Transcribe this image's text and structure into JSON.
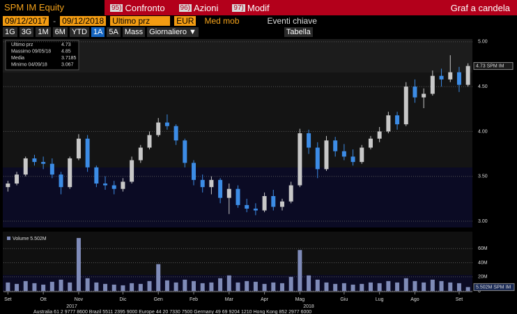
{
  "header": {
    "security": "SPM IM Equity",
    "menu": [
      {
        "key": "95)",
        "label": "Confronto"
      },
      {
        "key": "96)",
        "label": "Azioni"
      },
      {
        "key": "97)",
        "label": "Modif"
      }
    ],
    "chart_kind": "Graf a candela"
  },
  "toolbar": {
    "from": "09/12/2017",
    "to": "09/12/2018",
    "field": "Ultimo prz",
    "currency": "EUR",
    "moving_avg": "Med mob",
    "events": "Eventi chiave",
    "periods": [
      "1G",
      "3G",
      "1M",
      "6M",
      "YTD",
      "1A",
      "5A",
      "Mass"
    ],
    "active_period": "1A",
    "frequency": "Giornaliero ▼",
    "table": "Tabella"
  },
  "chart_data": [
    {
      "type": "candlestick",
      "stats": [
        {
          "label": "Ultimo prz",
          "value": 4.73
        },
        {
          "label": "Massimo 09/05/18",
          "value": 4.85
        },
        {
          "label": "Media",
          "value": 3.7185
        },
        {
          "label": "Minimo 04/09/18",
          "value": 3.067
        }
      ],
      "last_label": "4.73 SPM IM",
      "up_color": "#c8c8c8",
      "down_color": "#3c8ce6",
      "categories": [
        "Set",
        null,
        null,
        null,
        "Ott",
        null,
        null,
        null,
        "Nov",
        null,
        null,
        null,
        null,
        "Dic",
        null,
        null,
        null,
        "Gen",
        null,
        null,
        null,
        "Feb",
        null,
        null,
        null,
        "Mar",
        null,
        null,
        null,
        "Apr",
        null,
        null,
        null,
        "Mag",
        null,
        null,
        null,
        null,
        "Giu",
        null,
        null,
        null,
        "Lug",
        null,
        null,
        null,
        "Ago",
        null,
        null,
        null,
        null,
        "Set",
        null
      ],
      "years": [
        "2017",
        "2018"
      ],
      "open": [
        3.38,
        3.42,
        3.52,
        3.7,
        3.66,
        3.64,
        3.52,
        3.38,
        3.7,
        3.92,
        3.6,
        3.42,
        3.4,
        3.36,
        3.44,
        3.68,
        3.82,
        3.96,
        4.1,
        4.06,
        3.9,
        3.65,
        3.46,
        3.38,
        3.46,
        3.26,
        3.36,
        3.18,
        3.14,
        3.12,
        3.28,
        3.16,
        3.22,
        3.4,
        3.98,
        3.82,
        3.58,
        3.9,
        3.78,
        3.72,
        3.66,
        3.82,
        3.92,
        4.0,
        4.18,
        4.08,
        4.5,
        4.38,
        4.42,
        4.62,
        4.58,
        4.66,
        4.52
      ],
      "high": [
        3.45,
        3.55,
        3.72,
        3.74,
        3.72,
        3.7,
        3.55,
        3.72,
        3.97,
        3.96,
        3.62,
        3.5,
        3.45,
        3.48,
        3.72,
        3.85,
        4.0,
        4.15,
        4.19,
        4.08,
        3.92,
        3.68,
        3.52,
        3.5,
        3.48,
        3.42,
        3.4,
        3.25,
        3.2,
        3.32,
        3.35,
        3.25,
        3.44,
        4.03,
        4.02,
        3.88,
        3.95,
        3.94,
        3.86,
        3.8,
        3.85,
        3.95,
        4.05,
        4.22,
        4.22,
        4.55,
        4.58,
        4.48,
        4.68,
        4.7,
        4.85,
        4.72,
        4.76
      ],
      "low": [
        3.33,
        3.4,
        3.5,
        3.62,
        3.58,
        3.48,
        3.3,
        3.36,
        3.68,
        3.55,
        3.38,
        3.35,
        3.3,
        3.33,
        3.42,
        3.65,
        3.8,
        3.94,
        4.02,
        3.85,
        3.6,
        3.4,
        3.32,
        3.3,
        3.2,
        3.08,
        3.15,
        3.1,
        3.067,
        3.1,
        3.12,
        3.12,
        3.2,
        3.38,
        3.75,
        3.48,
        3.56,
        3.72,
        3.68,
        3.62,
        3.64,
        3.8,
        3.88,
        3.98,
        4.02,
        4.06,
        4.32,
        4.26,
        4.4,
        4.5,
        4.55,
        4.44,
        4.5
      ],
      "close": [
        3.42,
        3.52,
        3.7,
        3.66,
        3.64,
        3.52,
        3.38,
        3.7,
        3.92,
        3.6,
        3.42,
        3.4,
        3.36,
        3.44,
        3.68,
        3.82,
        3.96,
        4.1,
        4.06,
        3.9,
        3.65,
        3.46,
        3.38,
        3.46,
        3.26,
        3.36,
        3.18,
        3.14,
        3.12,
        3.28,
        3.16,
        3.22,
        3.4,
        3.98,
        3.82,
        3.58,
        3.9,
        3.78,
        3.72,
        3.66,
        3.82,
        3.92,
        4.0,
        4.18,
        4.08,
        4.5,
        4.38,
        4.42,
        4.62,
        4.58,
        4.66,
        4.52,
        4.73
      ],
      "ylim": [
        2.93,
        5.03
      ],
      "yticks": [
        {
          "value": 3,
          "label": "3.00"
        },
        {
          "value": 3.5,
          "label": "3.50"
        },
        {
          "value": 4,
          "label": "4.00"
        },
        {
          "value": 4.5,
          "label": "4.50"
        },
        {
          "value": 5,
          "label": "5.00"
        }
      ],
      "grid": true
    },
    {
      "type": "bar",
      "title": "Volume 5.502M",
      "last_label": "5.502M SPM IM",
      "color": "#7f8bb8",
      "values": [
        12,
        10,
        14,
        11,
        9,
        13,
        16,
        12,
        75,
        18,
        12,
        10,
        9,
        8,
        11,
        10,
        14,
        38,
        15,
        12,
        16,
        14,
        11,
        12,
        18,
        22,
        12,
        14,
        13,
        10,
        12,
        11,
        20,
        58,
        22,
        16,
        12,
        10,
        11,
        9,
        10,
        12,
        11,
        14,
        12,
        18,
        14,
        12,
        16,
        14,
        12,
        11,
        5.502
      ],
      "ylim": [
        0,
        82
      ],
      "yticks": [
        0,
        {
          "value": 20,
          "label": "20M"
        },
        {
          "value": 40,
          "label": "40M"
        },
        {
          "value": 60,
          "label": "60M"
        }
      ],
      "grid": true
    }
  ],
  "footer": "Australia 61 2 9777 8600 Brazil 5511 2395 9000 Europe 44 20 7330 7500 Germany 49 69 9204 1210 Hong Kong 852 2977 6000"
}
